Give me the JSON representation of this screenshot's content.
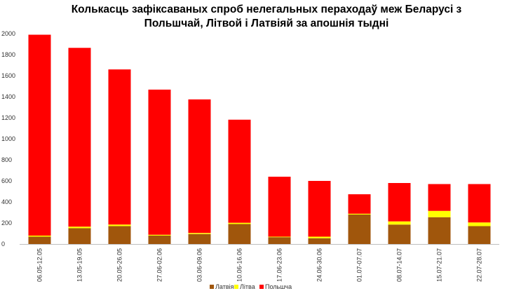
{
  "chart_data": {
    "type": "bar",
    "stacked": true,
    "title_lines": [
      "Колькасць зафіксаваных спроб нелегальных пераходаў меж Беларусі з",
      "Польшчай, Літвой і Латвіяй за апошнія тыдні"
    ],
    "categories": [
      "06.05-12.05",
      "13.05-19.05",
      "20.05-26.05",
      "27.06-02.06",
      "03.06-09.06",
      "10.06-16.06",
      "17.06-23.06",
      "24.06-30.06",
      "01.07-07.07",
      "08.07-14.07",
      "15.07-21.07",
      "22.07-28.07"
    ],
    "series": [
      {
        "name": "Латвія",
        "color": "#A0560C",
        "values": [
          70,
          150,
          170,
          80,
          95,
          190,
          65,
          55,
          280,
          185,
          255,
          170
        ]
      },
      {
        "name": "Літва",
        "color": "#FFFF00",
        "values": [
          10,
          15,
          15,
          8,
          10,
          12,
          5,
          15,
          8,
          30,
          60,
          35
        ]
      },
      {
        "name": "Польшча",
        "color": "#FF0000",
        "values": [
          1910,
          1700,
          1475,
          1380,
          1270,
          980,
          570,
          530,
          185,
          365,
          255,
          365
        ]
      }
    ],
    "y_ticks": [
      "0",
      "200",
      "400",
      "600",
      "800",
      "1000",
      "1200",
      "1400",
      "1600",
      "1800",
      "2000"
    ],
    "ylim": [
      0,
      2000
    ],
    "grid": false,
    "legend_position": "bottom"
  }
}
